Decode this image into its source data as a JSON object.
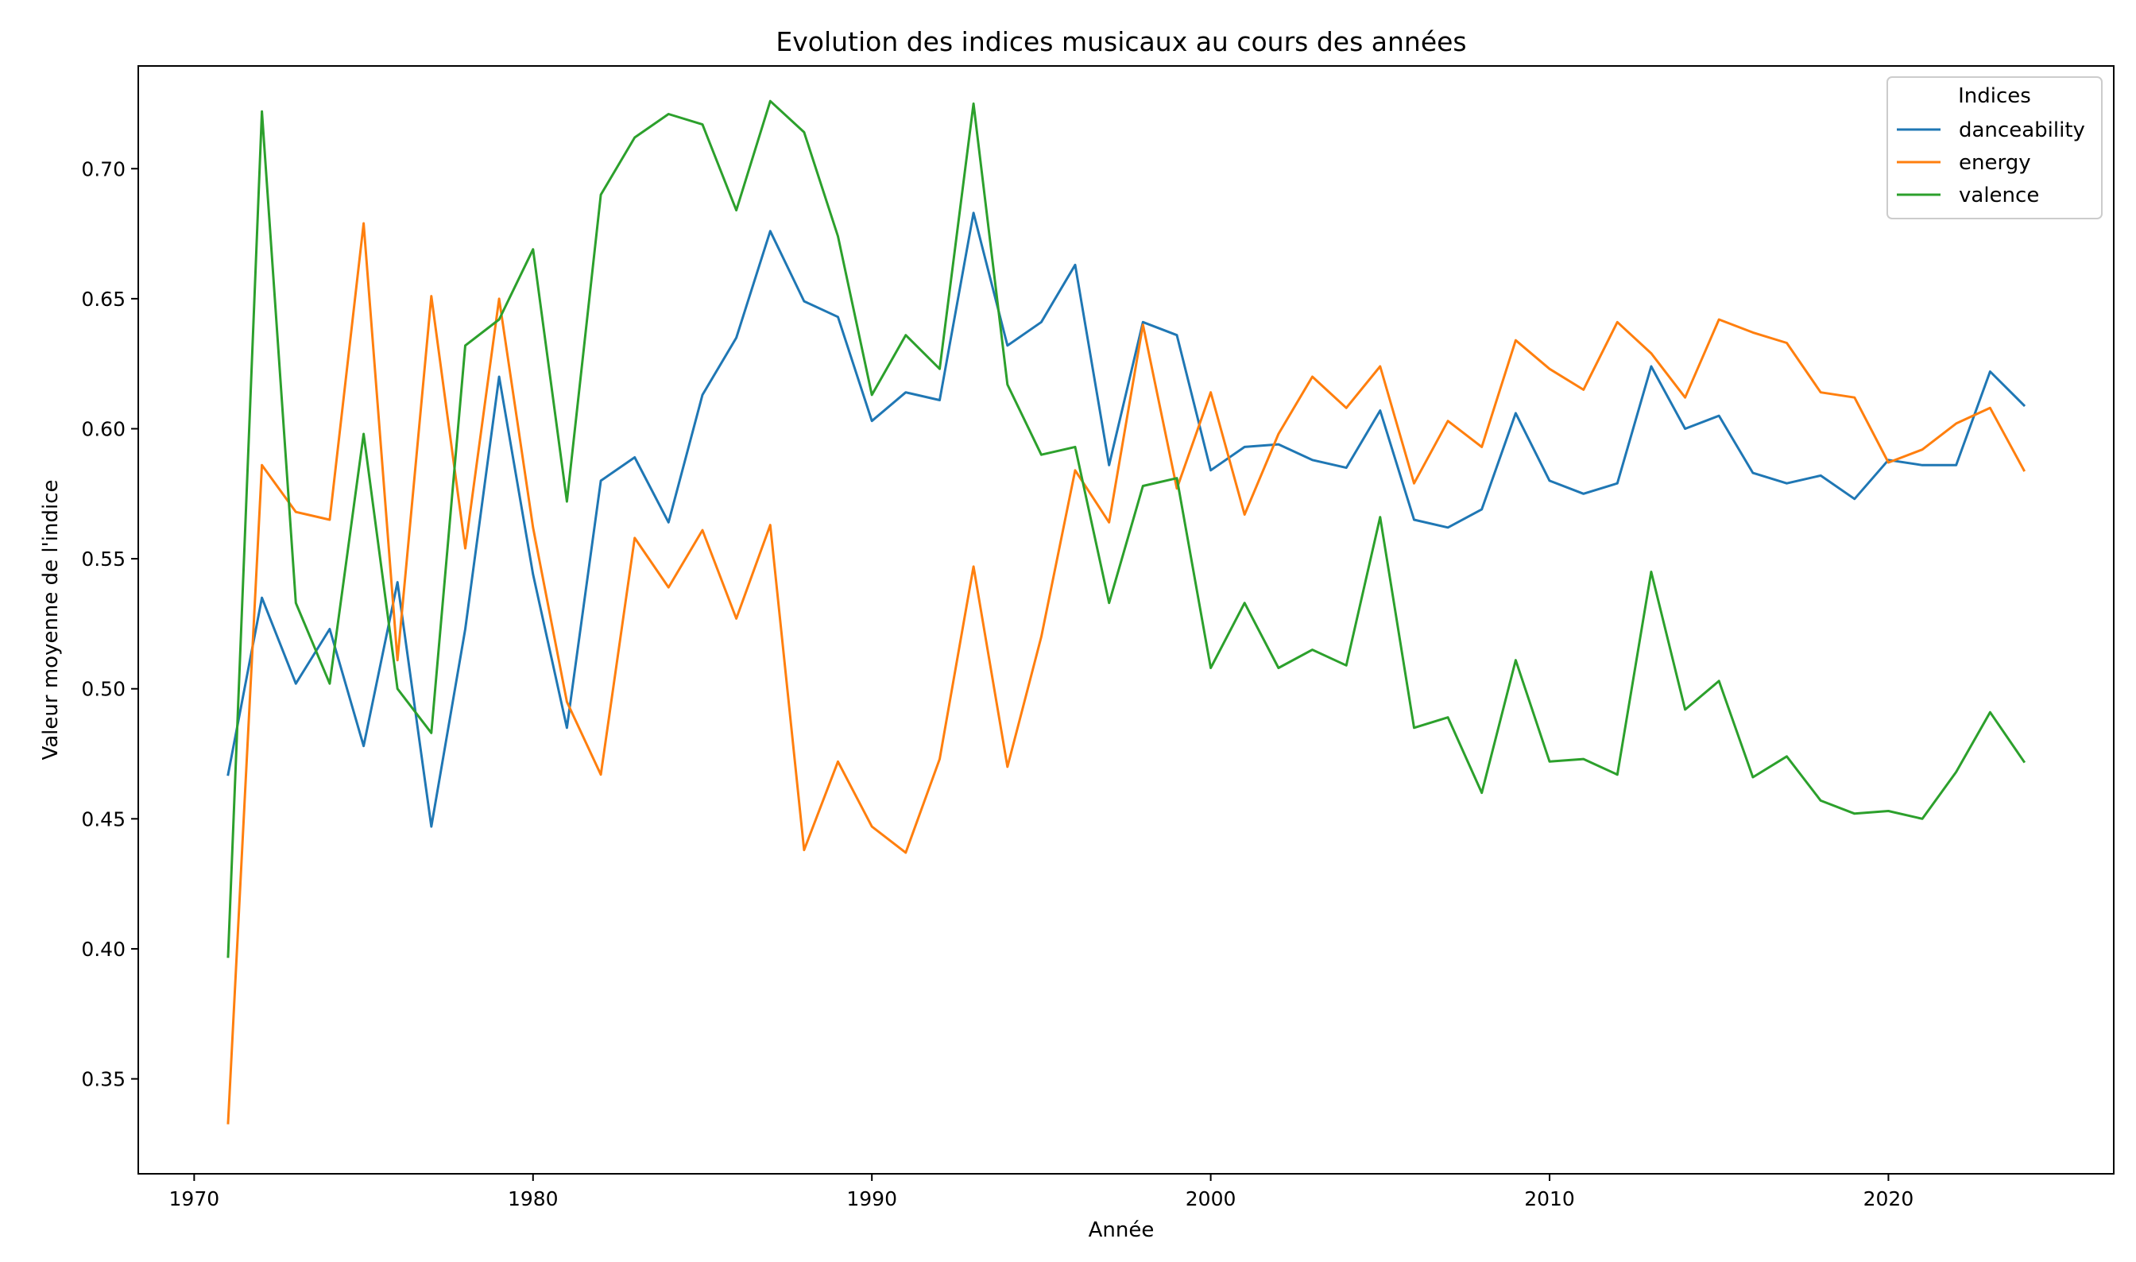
{
  "chart_data": {
    "type": "line",
    "title": "Evolution des indices musicaux au cours des années",
    "xlabel": "Année",
    "ylabel": "Valeur moyenne de l'indice",
    "xlim": [
      1968.35,
      2026.65
    ],
    "ylim": [
      0.3135,
      0.7395
    ],
    "x_ticks": [
      1970,
      1980,
      1990,
      2000,
      2010,
      2020
    ],
    "x_tick_labels": [
      "1970",
      "1980",
      "1990",
      "2000",
      "2010",
      "2020"
    ],
    "y_ticks": [
      0.35,
      0.4,
      0.45,
      0.5,
      0.55,
      0.6,
      0.65,
      0.7
    ],
    "y_tick_labels": [
      "0.35",
      "0.40",
      "0.45",
      "0.50",
      "0.55",
      "0.60",
      "0.65",
      "0.70"
    ],
    "grid": false,
    "legend": {
      "title": "Indices",
      "placement": "top-right"
    },
    "x": [
      1971,
      1972,
      1973,
      1974,
      1975,
      1976,
      1977,
      1978,
      1979,
      1980,
      1981,
      1982,
      1983,
      1984,
      1985,
      1986,
      1987,
      1988,
      1989,
      1990,
      1991,
      1992,
      1993,
      1994,
      1995,
      1996,
      1997,
      1998,
      1999,
      2000,
      2001,
      2002,
      2003,
      2004,
      2005,
      2006,
      2007,
      2008,
      2009,
      2010,
      2011,
      2012,
      2013,
      2014,
      2015,
      2016,
      2017,
      2018,
      2019,
      2020,
      2021,
      2022,
      2023,
      2024
    ],
    "series": [
      {
        "name": "danceability",
        "color": "#1f77b4",
        "values": [
          0.467,
          0.535,
          0.502,
          0.523,
          0.478,
          0.541,
          0.447,
          0.523,
          0.62,
          0.544,
          0.485,
          0.58,
          0.589,
          0.564,
          0.613,
          0.635,
          0.676,
          0.649,
          0.643,
          0.603,
          0.614,
          0.611,
          0.683,
          0.632,
          0.641,
          0.663,
          0.586,
          0.641,
          0.636,
          0.584,
          0.593,
          0.594,
          0.588,
          0.585,
          0.607,
          0.565,
          0.562,
          0.569,
          0.606,
          0.58,
          0.575,
          0.579,
          0.624,
          0.6,
          0.605,
          0.583,
          0.579,
          0.582,
          0.573,
          0.588,
          0.586,
          0.586,
          0.622,
          0.609
        ]
      },
      {
        "name": "energy",
        "color": "#ff7f0e",
        "values": [
          0.333,
          0.586,
          0.568,
          0.565,
          0.679,
          0.511,
          0.651,
          0.554,
          0.65,
          0.562,
          0.495,
          0.467,
          0.558,
          0.539,
          0.561,
          0.527,
          0.563,
          0.438,
          0.472,
          0.447,
          0.437,
          0.473,
          0.547,
          0.47,
          0.52,
          0.584,
          0.564,
          0.64,
          0.577,
          0.614,
          0.567,
          0.598,
          0.62,
          0.608,
          0.624,
          0.579,
          0.603,
          0.593,
          0.634,
          0.623,
          0.615,
          0.641,
          0.629,
          0.612,
          0.642,
          0.637,
          0.633,
          0.614,
          0.612,
          0.587,
          0.592,
          0.602,
          0.608,
          0.584
        ]
      },
      {
        "name": "valence",
        "color": "#2ca02c",
        "values": [
          0.397,
          0.722,
          0.533,
          0.502,
          0.598,
          0.5,
          0.483,
          0.632,
          0.642,
          0.669,
          0.572,
          0.69,
          0.712,
          0.721,
          0.717,
          0.684,
          0.726,
          0.714,
          0.674,
          0.613,
          0.636,
          0.623,
          0.725,
          0.617,
          0.59,
          0.593,
          0.533,
          0.578,
          0.581,
          0.508,
          0.533,
          0.508,
          0.515,
          0.509,
          0.566,
          0.485,
          0.489,
          0.46,
          0.511,
          0.472,
          0.473,
          0.467,
          0.545,
          0.492,
          0.503,
          0.466,
          0.474,
          0.457,
          0.452,
          0.453,
          0.45,
          0.468,
          0.491,
          0.472
        ]
      }
    ]
  }
}
